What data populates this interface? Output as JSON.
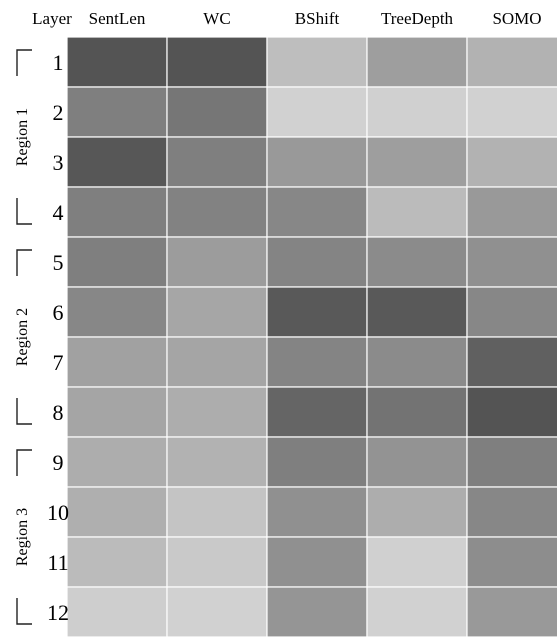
{
  "chart_data": {
    "type": "heatmap",
    "title": "",
    "corner_label": "Layer",
    "columns": [
      "SentLen",
      "WC",
      "BShift",
      "TreeDepth",
      "SOMO"
    ],
    "rows": [
      "1",
      "2",
      "3",
      "4",
      "5",
      "6",
      "7",
      "8",
      "9",
      "10",
      "11",
      "12"
    ],
    "regions": [
      {
        "label": "Region 1",
        "first_row": 1,
        "last_row": 4
      },
      {
        "label": "Region 2",
        "first_row": 5,
        "last_row": 8
      },
      {
        "label": "Region 3",
        "first_row": 9,
        "last_row": 12
      }
    ],
    "values": [
      [
        0.85,
        0.85,
        0.23,
        0.42,
        0.3
      ],
      [
        0.6,
        0.65,
        0.12,
        0.13,
        0.12
      ],
      [
        0.83,
        0.6,
        0.45,
        0.42,
        0.3
      ],
      [
        0.6,
        0.58,
        0.55,
        0.25,
        0.45
      ],
      [
        0.6,
        0.43,
        0.57,
        0.53,
        0.5
      ],
      [
        0.55,
        0.37,
        0.82,
        0.82,
        0.55
      ],
      [
        0.4,
        0.38,
        0.57,
        0.53,
        0.78
      ],
      [
        0.38,
        0.33,
        0.75,
        0.67,
        0.85
      ],
      [
        0.33,
        0.3,
        0.6,
        0.48,
        0.6
      ],
      [
        0.32,
        0.2,
        0.5,
        0.33,
        0.55
      ],
      [
        0.25,
        0.17,
        0.5,
        0.13,
        0.52
      ],
      [
        0.14,
        0.12,
        0.47,
        0.12,
        0.45
      ]
    ],
    "value_range": [
      0,
      1
    ],
    "colormap": {
      "low": "#e6e6e6",
      "high": "#3a3a3a"
    },
    "grid": true,
    "legend": "none"
  }
}
